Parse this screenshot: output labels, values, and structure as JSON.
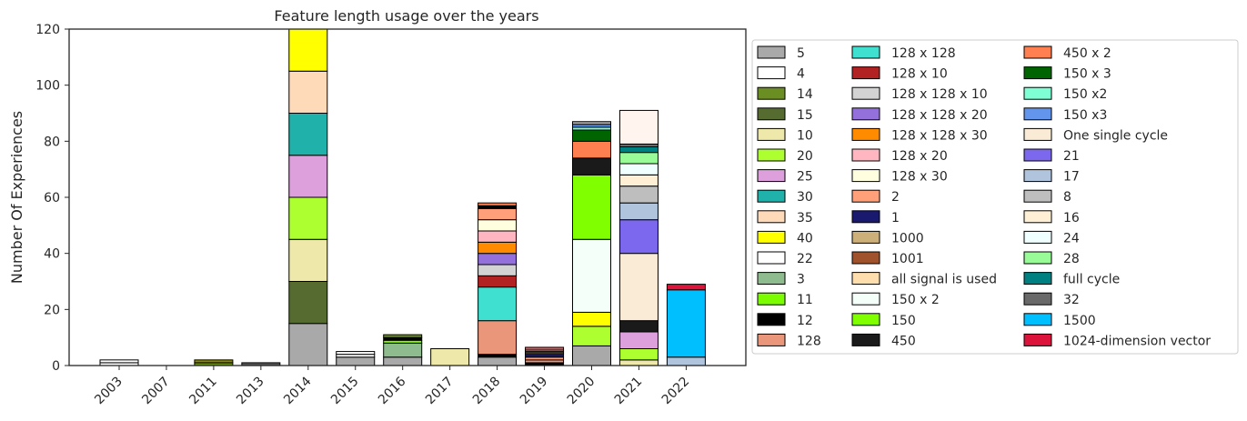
{
  "chart_data": {
    "type": "bar",
    "stacked": true,
    "title": "Feature length usage over the years",
    "xlabel": "",
    "ylabel": "Number Of Experiences",
    "ylim": [
      0,
      120
    ],
    "yticks": [
      0,
      20,
      40,
      60,
      80,
      100,
      120
    ],
    "grid": false,
    "legend_position": "right (outside plot), 3 columns",
    "categories": [
      "2003",
      "2007",
      "2011",
      "2013",
      "2014",
      "2015",
      "2016",
      "2017",
      "2018",
      "2019",
      "2020",
      "2021",
      "2022"
    ],
    "series": [
      {
        "name": "5",
        "color": "#a9a9a9",
        "values": [
          0,
          0,
          0,
          0,
          15,
          3,
          3,
          0,
          3,
          0,
          7,
          0,
          0
        ]
      },
      {
        "name": "4",
        "color": "#ffffff",
        "values": [
          1,
          0,
          0,
          0,
          0,
          1,
          0,
          0,
          0,
          0,
          0,
          0,
          0
        ]
      },
      {
        "name": "14",
        "color": "#6b8e23",
        "values": [
          0,
          0,
          1,
          0,
          0,
          0,
          0,
          0,
          0,
          0,
          0,
          0,
          0
        ]
      },
      {
        "name": "15",
        "color": "#556b2f",
        "values": [
          0,
          0,
          0,
          0,
          15,
          0,
          0,
          0,
          0,
          0,
          0,
          0,
          0
        ]
      },
      {
        "name": "10",
        "color": "#eee8aa",
        "values": [
          0,
          0,
          0,
          0,
          15,
          0,
          0,
          6,
          0,
          0,
          0,
          2,
          0
        ]
      },
      {
        "name": "20",
        "color": "#adff2f",
        "values": [
          0,
          0,
          0,
          0,
          15,
          0,
          0,
          0,
          0,
          0,
          7,
          4,
          0
        ]
      },
      {
        "name": "25",
        "color": "#dda0dd",
        "values": [
          0,
          0,
          0,
          0,
          15,
          0,
          0,
          0,
          0,
          0,
          0,
          6,
          0
        ]
      },
      {
        "name": "30",
        "color": "#20b2aa",
        "values": [
          0,
          0,
          0,
          0,
          15,
          0,
          0,
          0,
          0,
          0,
          0,
          0,
          0
        ]
      },
      {
        "name": "35",
        "color": "#ffdab9",
        "values": [
          0,
          0,
          0,
          0,
          15,
          0,
          0,
          0,
          0,
          0,
          0,
          0,
          0
        ]
      },
      {
        "name": "40",
        "color": "#ffff00",
        "values": [
          0,
          0,
          0,
          0,
          15,
          0,
          0,
          0,
          0,
          0,
          5,
          0,
          0
        ]
      },
      {
        "name": "22",
        "color": "#ffffff",
        "values": [
          0,
          0,
          0,
          0,
          0,
          1,
          0,
          0,
          0,
          0,
          0,
          0,
          0
        ]
      },
      {
        "name": "3",
        "color": "#8fbc8f",
        "values": [
          0,
          0,
          0,
          0,
          0,
          0,
          5,
          0,
          0,
          0,
          0,
          0,
          0
        ]
      },
      {
        "name": "11",
        "color": "#7cfc00",
        "values": [
          0,
          0,
          0,
          0,
          0,
          0,
          1,
          0,
          0,
          0,
          0,
          0,
          0
        ]
      },
      {
        "name": "12",
        "color": "#000000",
        "values": [
          0,
          0,
          0,
          0,
          0,
          0,
          1,
          0,
          1,
          1,
          0,
          0,
          0
        ]
      },
      {
        "name": "128",
        "color": "#e9967a",
        "values": [
          0,
          0,
          0,
          0,
          0,
          0,
          0,
          0,
          12,
          1,
          0,
          0,
          0
        ]
      },
      {
        "name": "128 x 128",
        "color": "#40e0d0",
        "values": [
          0,
          0,
          0,
          0,
          0,
          0,
          0,
          0,
          12,
          0,
          0,
          0,
          0
        ]
      },
      {
        "name": "128 x 10",
        "color": "#b22222",
        "values": [
          0,
          0,
          0,
          0,
          0,
          0,
          0,
          0,
          4,
          0,
          0,
          0,
          0
        ]
      },
      {
        "name": "128 x 128 x 10",
        "color": "#d3d3d3",
        "values": [
          0,
          0,
          0,
          0,
          0,
          0,
          0,
          0,
          4,
          0,
          0,
          0,
          0
        ]
      },
      {
        "name": "128 x 128 x 20",
        "color": "#9370db",
        "values": [
          0,
          0,
          0,
          0,
          0,
          0,
          0,
          0,
          4,
          0,
          0,
          0,
          0
        ]
      },
      {
        "name": "128 x 128 x 30",
        "color": "#ff8c00",
        "values": [
          0,
          0,
          0,
          0,
          0,
          0,
          0,
          0,
          4,
          0,
          0,
          0,
          0
        ]
      },
      {
        "name": "128 x 20",
        "color": "#ffb6c1",
        "values": [
          0,
          0,
          0,
          0,
          0,
          0,
          0,
          0,
          4,
          0,
          0,
          0,
          0
        ]
      },
      {
        "name": "128 x 30",
        "color": "#ffffe0",
        "values": [
          0,
          0,
          0,
          0,
          0,
          0,
          0,
          0,
          4,
          0,
          0,
          0,
          0
        ]
      },
      {
        "name": "2",
        "color": "#ffa07a",
        "values": [
          0,
          0,
          0,
          0,
          0,
          0,
          0,
          0,
          4,
          1,
          0,
          0,
          0
        ]
      },
      {
        "name": "1",
        "color": "#191970",
        "values": [
          0,
          0,
          0,
          0,
          0,
          0,
          0,
          0,
          0,
          1,
          0,
          0,
          0
        ]
      },
      {
        "name": "1000",
        "color": "#cdb079",
        "values": [
          0,
          0,
          0,
          0,
          0,
          0,
          0,
          0,
          0,
          0.5,
          0,
          0,
          0
        ]
      },
      {
        "name": "1001",
        "color": "#a0522d",
        "values": [
          0,
          0,
          0,
          0,
          0,
          0,
          0,
          0,
          0,
          0.5,
          0,
          0,
          0
        ]
      },
      {
        "name": "all signal is used",
        "color": "#ffdead",
        "values": [
          0,
          0,
          0,
          0,
          0,
          0,
          0,
          0,
          0,
          0.5,
          0,
          0,
          0
        ]
      },
      {
        "name": "150 x 2",
        "color": "#f5fffa",
        "values": [
          0,
          0,
          0,
          0,
          0,
          0,
          0,
          0,
          0,
          0,
          26,
          0,
          0
        ]
      },
      {
        "name": "150",
        "color": "#7fff00",
        "values": [
          0,
          0,
          0,
          0,
          0,
          0,
          0,
          0,
          0,
          0,
          23,
          0,
          0
        ]
      },
      {
        "name": "450",
        "color": "#1a1a1a",
        "values": [
          0,
          0,
          0,
          0,
          0,
          0,
          0,
          0,
          0,
          0,
          6,
          4,
          0
        ]
      },
      {
        "name": "450 x 2",
        "color": "#ff7f50",
        "values": [
          0,
          0,
          0,
          0,
          0,
          0,
          0,
          0,
          0,
          0,
          6,
          0,
          0
        ]
      },
      {
        "name": "150 x 3",
        "color": "#006400",
        "values": [
          0,
          0,
          0,
          0,
          0,
          0,
          0,
          0,
          0,
          0,
          4,
          0,
          0
        ]
      },
      {
        "name": "150 x2",
        "color": "#7fffd4",
        "values": [
          0,
          0,
          0,
          0,
          0,
          0,
          0,
          0,
          0,
          0,
          1,
          0,
          0
        ]
      },
      {
        "name": "150 x3",
        "color": "#6495ed",
        "values": [
          0,
          0,
          0,
          0,
          0,
          0,
          0,
          0,
          0,
          0,
          1,
          0,
          0
        ]
      },
      {
        "name": "One single cycle",
        "color": "#faebd7",
        "values": [
          0,
          0,
          0,
          0,
          0,
          0,
          0,
          0,
          0,
          0,
          0,
          24,
          0
        ]
      },
      {
        "name": "21",
        "color": "#7b68ee",
        "values": [
          0,
          0,
          0,
          0,
          0,
          0,
          0,
          0,
          0,
          0,
          0,
          12,
          0
        ]
      },
      {
        "name": "17",
        "color": "#b0c4de",
        "values": [
          0,
          0,
          0,
          0,
          0,
          0,
          0,
          0,
          0,
          0,
          0,
          6,
          3
        ]
      },
      {
        "name": "8",
        "color": "#bebebe",
        "values": [
          0,
          0,
          0,
          0,
          0,
          0,
          0,
          0,
          0,
          0,
          0,
          6,
          0
        ]
      },
      {
        "name": "16",
        "color": "#ffefd5",
        "values": [
          0,
          0,
          0,
          0,
          0,
          0,
          0,
          0,
          0,
          0,
          0,
          4,
          0
        ]
      },
      {
        "name": "24",
        "color": "#f0ffff",
        "values": [
          0,
          0,
          0,
          0,
          0,
          0,
          0,
          0,
          0,
          0,
          0,
          4,
          0
        ]
      },
      {
        "name": "28",
        "color": "#98fb98",
        "values": [
          0,
          0,
          0,
          0,
          0,
          0,
          0,
          0,
          0,
          0,
          0,
          4,
          0
        ]
      },
      {
        "name": "full cycle",
        "color": "#008080",
        "values": [
          0,
          0,
          0,
          0,
          0,
          0,
          0,
          0,
          0,
          0,
          0,
          2,
          0
        ]
      },
      {
        "name": "32",
        "color": "#696969",
        "values": [
          0,
          0,
          0,
          0,
          0,
          0,
          0,
          0,
          0,
          0,
          0,
          1,
          0
        ]
      },
      {
        "name": "1500",
        "color": "#00bfff",
        "values": [
          0,
          0,
          0,
          0,
          0,
          0,
          0,
          0,
          0,
          0,
          0,
          0,
          24
        ]
      },
      {
        "name": "1024-dimension vector",
        "color": "#dc143c",
        "values": [
          0,
          0,
          0,
          0,
          0,
          0,
          0,
          0,
          0,
          0,
          0,
          0,
          2
        ]
      }
    ],
    "extra_segments": [
      {
        "category": "2003",
        "color": "#ffffff",
        "value": 1
      },
      {
        "category": "2011",
        "color": "#8b8b00",
        "value": 1
      },
      {
        "category": "2013",
        "color": "#555555",
        "value": 1
      },
      {
        "category": "2016",
        "color": "#6b8e23",
        "value": 1
      },
      {
        "category": "2018",
        "color": "#000000",
        "value": 1
      },
      {
        "category": "2018",
        "color": "#ff7f50",
        "value": 1
      },
      {
        "category": "2019",
        "color": "#cd5c5c",
        "value": 1
      },
      {
        "category": "2020",
        "color": "#a9a9a9",
        "value": 1
      },
      {
        "category": "2021",
        "color": "#fff5ee",
        "value": 12
      },
      {
        "category": "2021",
        "color": "#000000",
        "value": 0
      }
    ]
  }
}
